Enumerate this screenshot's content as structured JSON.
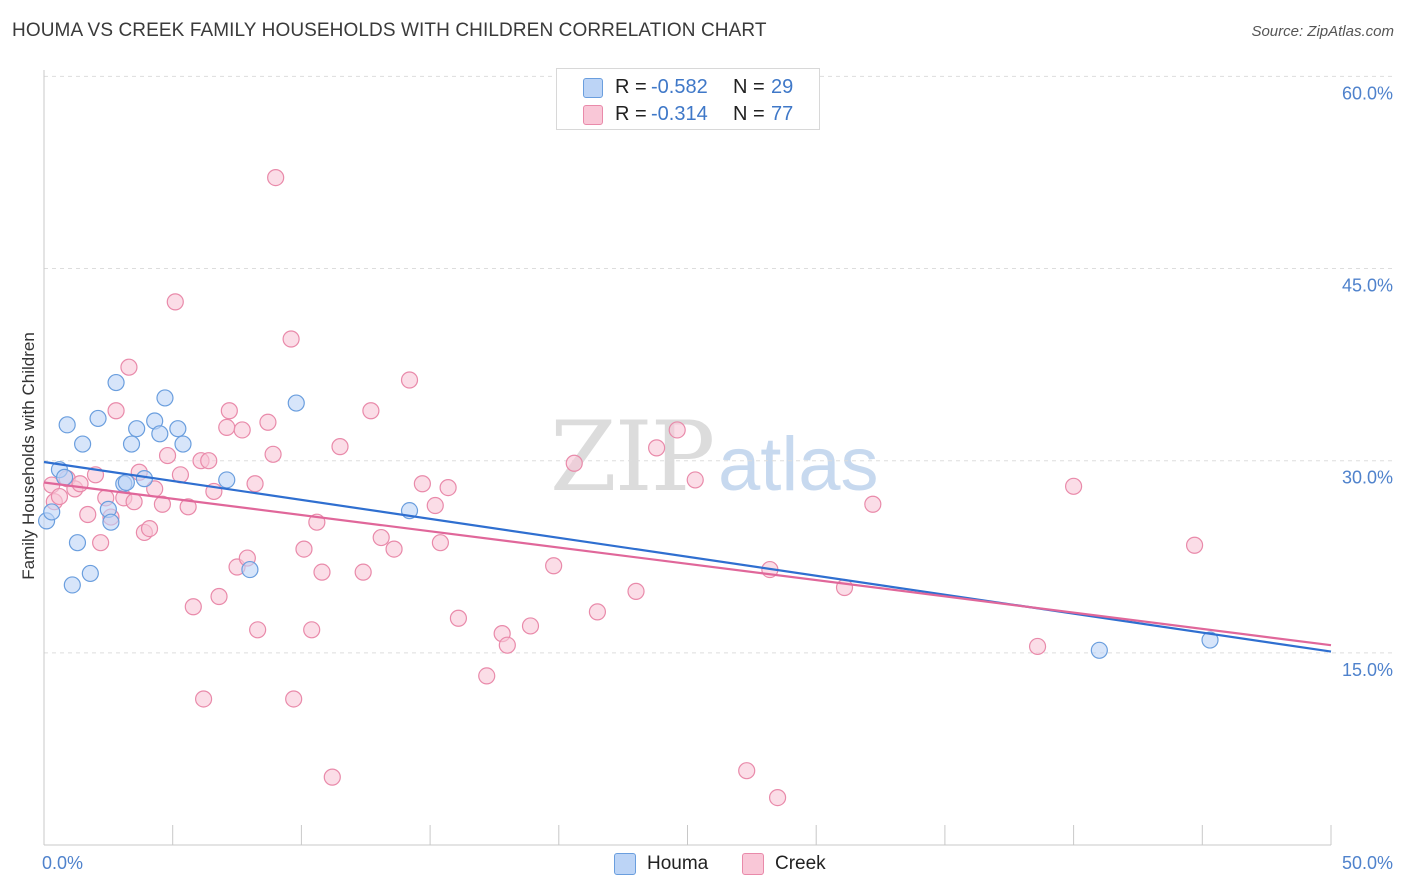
{
  "title": "HOUMA VS CREEK FAMILY HOUSEHOLDS WITH CHILDREN CORRELATION CHART",
  "source": "Source: ZipAtlas.com",
  "watermark": {
    "zip": "ZIP",
    "atlas": "atlas"
  },
  "colors": {
    "houma_fill": "#bcd4f6",
    "houma_stroke": "#6a9ede",
    "houma_line": "#2f6fd0",
    "creek_fill": "#f9c7d7",
    "creek_stroke": "#e98aaa",
    "creek_line": "#e0679a",
    "axis_text": "#4f82cc",
    "grid": "#dddddd"
  },
  "legend": {
    "items": [
      {
        "r_label": "R = ",
        "r_value": "-0.582",
        "n_label": "N = ",
        "n_value": "29"
      },
      {
        "r_label": "R = ",
        "r_value": "-0.314",
        "n_label": "N = ",
        "n_value": "77"
      }
    ]
  },
  "bottom_legend": {
    "houma": "Houma",
    "creek": "Creek"
  },
  "chart_data": {
    "type": "scatter",
    "title": "HOUMA VS CREEK FAMILY HOUSEHOLDS WITH CHILDREN CORRELATION CHART",
    "xlabel": "",
    "ylabel": "Family Households with Children",
    "xlim": [
      0,
      50
    ],
    "ylim": [
      0,
      60.5
    ],
    "x_tick_labels": [
      "0.0%",
      "50.0%"
    ],
    "y_tick_values": [
      15,
      30,
      45,
      60
    ],
    "y_tick_labels": [
      "15.0%",
      "30.0%",
      "45.0%",
      "60.0%"
    ],
    "grid": true,
    "legend_placement": "top-center",
    "series": [
      {
        "name": "Houma",
        "points": [
          [
            0.1,
            25.3
          ],
          [
            0.3,
            26.0
          ],
          [
            0.6,
            29.3
          ],
          [
            0.8,
            28.7
          ],
          [
            0.9,
            32.8
          ],
          [
            1.1,
            20.3
          ],
          [
            1.3,
            23.6
          ],
          [
            1.5,
            31.3
          ],
          [
            1.8,
            21.2
          ],
          [
            2.1,
            33.3
          ],
          [
            2.5,
            26.2
          ],
          [
            2.6,
            25.2
          ],
          [
            2.8,
            36.1
          ],
          [
            3.1,
            28.2
          ],
          [
            3.2,
            28.3
          ],
          [
            3.4,
            31.3
          ],
          [
            3.6,
            32.5
          ],
          [
            3.9,
            28.6
          ],
          [
            4.3,
            33.1
          ],
          [
            4.5,
            32.1
          ],
          [
            4.7,
            34.9
          ],
          [
            5.2,
            32.5
          ],
          [
            5.4,
            31.3
          ],
          [
            7.1,
            28.5
          ],
          [
            8.0,
            21.5
          ],
          [
            9.8,
            34.5
          ],
          [
            14.2,
            26.1
          ],
          [
            41.0,
            15.2
          ],
          [
            45.3,
            16.0
          ]
        ],
        "trend": {
          "x": [
            0,
            50
          ],
          "y": [
            29.9,
            15.1
          ]
        }
      },
      {
        "name": "Creek",
        "points": [
          [
            0.3,
            28.1
          ],
          [
            0.4,
            26.8
          ],
          [
            0.6,
            27.2
          ],
          [
            0.9,
            28.6
          ],
          [
            1.2,
            27.8
          ],
          [
            1.4,
            28.2
          ],
          [
            1.7,
            25.8
          ],
          [
            2.0,
            28.9
          ],
          [
            2.2,
            23.6
          ],
          [
            2.4,
            27.1
          ],
          [
            2.6,
            25.6
          ],
          [
            2.8,
            33.9
          ],
          [
            3.1,
            27.1
          ],
          [
            3.3,
            37.3
          ],
          [
            3.5,
            26.8
          ],
          [
            3.7,
            29.1
          ],
          [
            3.9,
            24.4
          ],
          [
            4.1,
            24.7
          ],
          [
            4.3,
            27.8
          ],
          [
            4.6,
            26.6
          ],
          [
            4.8,
            30.4
          ],
          [
            5.1,
            42.4
          ],
          [
            5.3,
            28.9
          ],
          [
            5.6,
            26.4
          ],
          [
            5.8,
            18.6
          ],
          [
            6.1,
            30.0
          ],
          [
            6.2,
            11.4
          ],
          [
            6.4,
            30.0
          ],
          [
            6.6,
            27.6
          ],
          [
            6.8,
            19.4
          ],
          [
            7.1,
            32.6
          ],
          [
            7.2,
            33.9
          ],
          [
            7.5,
            21.7
          ],
          [
            7.7,
            32.4
          ],
          [
            7.9,
            22.4
          ],
          [
            8.2,
            28.2
          ],
          [
            8.3,
            16.8
          ],
          [
            8.7,
            33.0
          ],
          [
            8.9,
            30.5
          ],
          [
            9.0,
            52.1
          ],
          [
            9.6,
            39.5
          ],
          [
            9.7,
            11.4
          ],
          [
            10.1,
            23.1
          ],
          [
            10.4,
            16.8
          ],
          [
            10.6,
            25.2
          ],
          [
            10.8,
            21.3
          ],
          [
            11.2,
            5.3
          ],
          [
            11.5,
            31.1
          ],
          [
            12.4,
            21.3
          ],
          [
            12.7,
            33.9
          ],
          [
            13.1,
            24.0
          ],
          [
            13.6,
            23.1
          ],
          [
            14.2,
            36.3
          ],
          [
            14.7,
            28.2
          ],
          [
            15.2,
            26.5
          ],
          [
            15.4,
            23.6
          ],
          [
            15.7,
            27.9
          ],
          [
            16.1,
            17.7
          ],
          [
            17.2,
            13.2
          ],
          [
            17.8,
            16.5
          ],
          [
            18.0,
            15.6
          ],
          [
            18.9,
            17.1
          ],
          [
            19.8,
            21.8
          ],
          [
            20.6,
            29.8
          ],
          [
            21.5,
            18.2
          ],
          [
            23.0,
            19.8
          ],
          [
            23.8,
            31.0
          ],
          [
            24.6,
            32.4
          ],
          [
            25.3,
            28.5
          ],
          [
            27.3,
            5.8
          ],
          [
            28.5,
            3.7
          ],
          [
            31.1,
            20.1
          ],
          [
            32.2,
            26.6
          ],
          [
            38.6,
            15.5
          ],
          [
            40.0,
            28.0
          ],
          [
            44.7,
            23.4
          ],
          [
            28.2,
            21.5
          ]
        ],
        "trend": {
          "x": [
            0,
            50
          ],
          "y": [
            28.3,
            15.6
          ]
        }
      }
    ]
  }
}
